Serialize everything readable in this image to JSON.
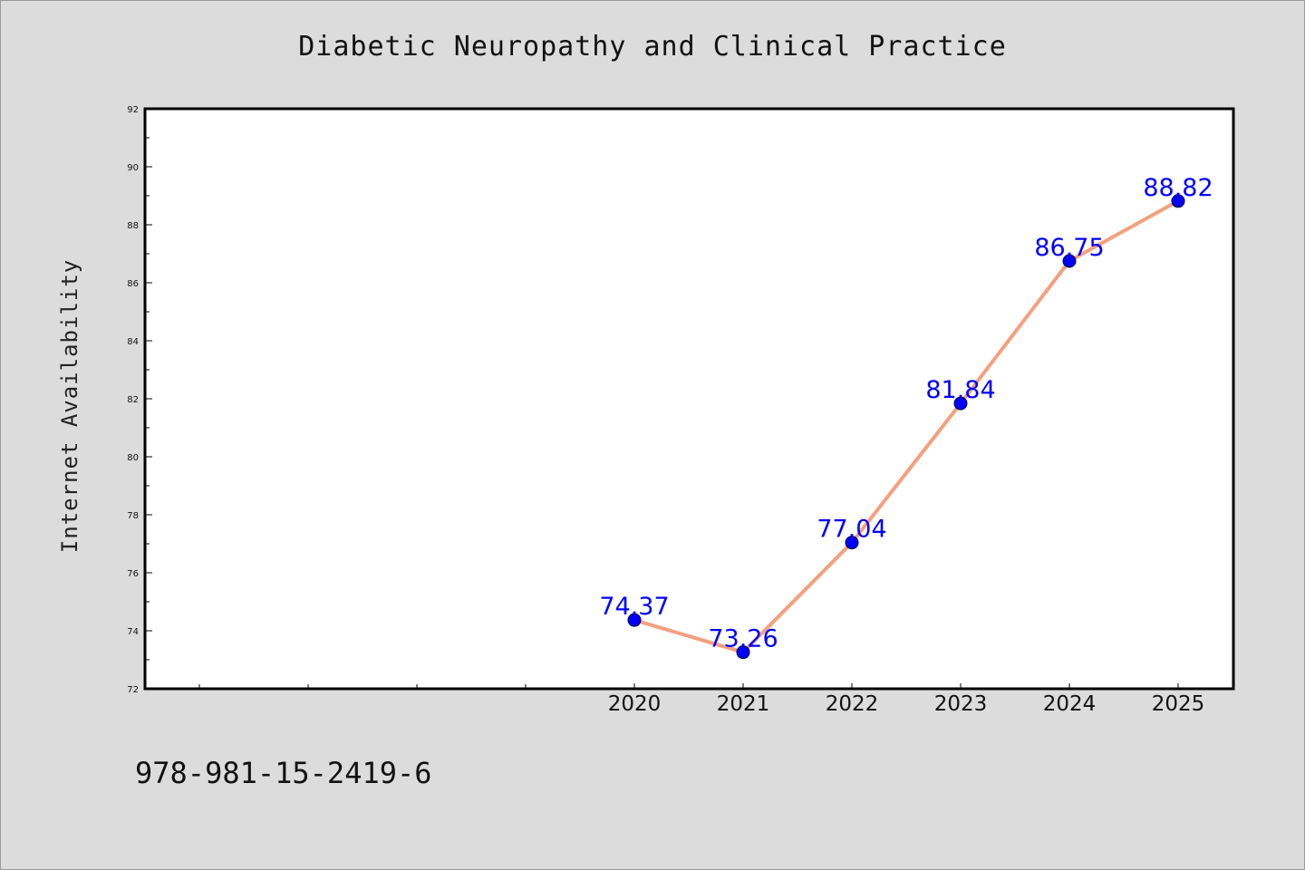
{
  "chart_data": {
    "type": "line",
    "title": "Diabetic Neuropathy and Clinical Practice",
    "ylabel": "Internet Availability",
    "xlabel": "",
    "x": [
      "2020",
      "2021",
      "2022",
      "2023",
      "2024",
      "2025"
    ],
    "series": [
      {
        "values": [
          74.37,
          73.26,
          77.04,
          81.84,
          86.75,
          88.82
        ],
        "data_labels": [
          "74.37",
          "73.26",
          "77.04",
          "81.84",
          "86.75",
          "88.82"
        ]
      }
    ],
    "ylim": [
      72,
      92
    ],
    "yticks": [
      "72",
      "74",
      "76",
      "78",
      "80",
      "82",
      "84",
      "86",
      "88",
      "90",
      "92"
    ],
    "grid": false,
    "line_color": "#f4a07e",
    "marker_color": "#0000ff",
    "label_color": "#0000ff"
  },
  "footer": {
    "isbn": "978-981-15-2419-6"
  },
  "colors": {
    "background": "#dcdcdc",
    "plot_background": "#ffffff"
  }
}
